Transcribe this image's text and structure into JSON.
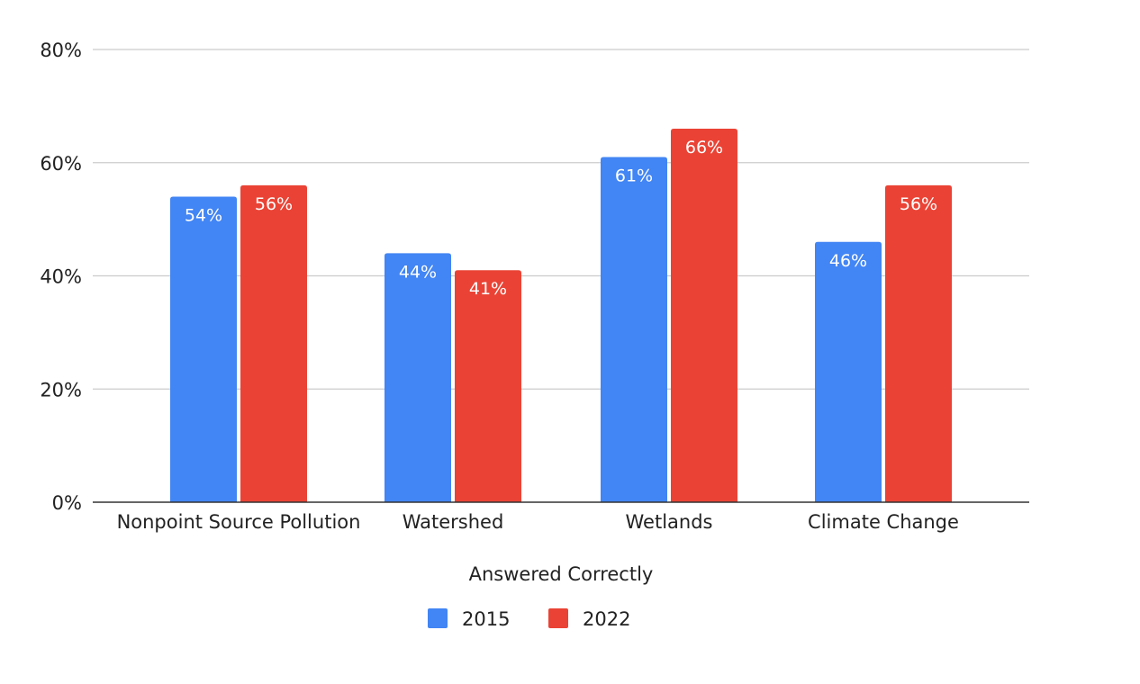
{
  "chart_data": {
    "type": "bar",
    "title": "",
    "xlabel": "Answered Correctly",
    "ylabel": "",
    "ylim": [
      0,
      80
    ],
    "yticks": [
      0,
      20,
      40,
      60,
      80
    ],
    "ytick_labels": [
      "0%",
      "20%",
      "40%",
      "60%",
      "80%"
    ],
    "grid": true,
    "legend_position": "bottom",
    "categories": [
      "Nonpoint Source Pollution",
      "Watershed",
      "Wetlands",
      "Climate Change"
    ],
    "series": [
      {
        "name": "2015",
        "color": "#4285f4",
        "values": [
          54,
          44,
          61,
          46
        ],
        "labels": [
          "54%",
          "44%",
          "61%",
          "46%"
        ]
      },
      {
        "name": "2022",
        "color": "#ea4335",
        "values": [
          56,
          41,
          66,
          56
        ],
        "labels": [
          "56%",
          "41%",
          "66%",
          "56%"
        ]
      }
    ]
  }
}
